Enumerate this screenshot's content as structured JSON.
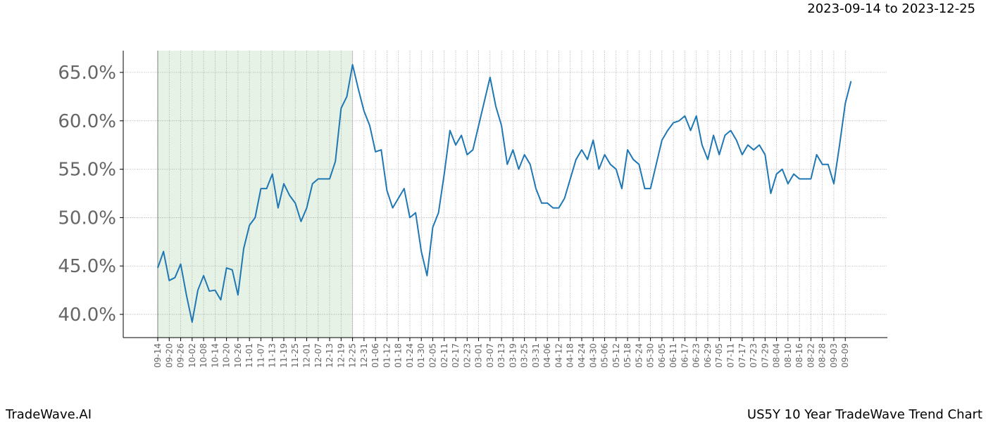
{
  "chart_data": {
    "type": "line",
    "title": "2023-09-14 to 2023-12-25",
    "footer_left": "TradeWave.AI",
    "footer_right": "US5Y 10 Year TradeWave Trend Chart",
    "categories": [
      "09-14",
      null,
      "09-20",
      null,
      "09-26",
      null,
      "10-02",
      null,
      "10-08",
      null,
      "10-14",
      null,
      "10-20",
      null,
      "10-26",
      null,
      "11-01",
      null,
      "11-07",
      null,
      "11-13",
      null,
      "11-19",
      null,
      "11-25",
      null,
      "12-01",
      null,
      "12-07",
      null,
      "12-13",
      null,
      "12-19",
      null,
      "12-25",
      null,
      "12-31",
      null,
      "01-06",
      null,
      "01-12",
      null,
      "01-18",
      null,
      "01-24",
      null,
      "01-30",
      null,
      "02-05",
      null,
      "02-11",
      null,
      "02-17",
      null,
      "02-23",
      null,
      "03-01",
      null,
      "03-07",
      null,
      "03-13",
      null,
      "03-19",
      null,
      "03-25",
      null,
      "03-31",
      null,
      "04-06",
      null,
      "04-12",
      null,
      "04-18",
      null,
      "04-24",
      null,
      "04-30",
      null,
      "05-06",
      null,
      "05-12",
      null,
      "05-18",
      null,
      "05-24",
      null,
      "05-30",
      null,
      "06-05",
      null,
      "06-11",
      null,
      "06-17",
      null,
      "06-23",
      null,
      "06-29",
      null,
      "07-05",
      null,
      "07-11",
      null,
      "07-17",
      null,
      "07-23",
      null,
      "07-29",
      null,
      "08-04",
      null,
      "08-10",
      null,
      "08-16",
      null,
      "08-22",
      null,
      "08-28",
      null,
      "09-03",
      null,
      "09-09",
      null
    ],
    "values": [
      44.8,
      46.5,
      43.5,
      43.8,
      45.2,
      42.0,
      39.2,
      42.5,
      44.0,
      42.4,
      42.5,
      41.5,
      44.8,
      44.6,
      42.0,
      46.8,
      49.2,
      50.0,
      53.0,
      53.0,
      54.5,
      51.0,
      53.5,
      52.3,
      51.5,
      49.6,
      51.0,
      53.5,
      54.0,
      54.0,
      54.0,
      55.8,
      61.3,
      62.5,
      65.8,
      63.3,
      61.0,
      59.5,
      56.8,
      57.0,
      52.8,
      51.0,
      52.0,
      53.0,
      50.0,
      50.5,
      46.5,
      44.0,
      49.0,
      50.5,
      54.5,
      59.0,
      57.5,
      58.5,
      56.5,
      57.0,
      59.5,
      62.0,
      64.5,
      61.5,
      59.5,
      55.5,
      57.0,
      55.0,
      56.5,
      55.5,
      53.0,
      51.5,
      51.5,
      51.0,
      51.0,
      52.0,
      54.0,
      56.0,
      57.0,
      56.0,
      58.0,
      55.0,
      56.5,
      55.5,
      55.0,
      53.0,
      57.0,
      56.0,
      55.5,
      53.0,
      53.0,
      55.5,
      58.0,
      59.0,
      59.8,
      60.0,
      60.5,
      59.0,
      60.5,
      57.5,
      56.0,
      58.5,
      56.5,
      58.5,
      59.0,
      58.0,
      56.5,
      57.5,
      57.0,
      57.5,
      56.5,
      52.5,
      54.5,
      55.0,
      53.5,
      54.5,
      54.0,
      54.0,
      54.0,
      56.5,
      55.5,
      55.5,
      53.5,
      57.5,
      61.8,
      64.1
    ],
    "color": "#1f77b4",
    "shaded_range": [
      "09-14",
      "12-25"
    ],
    "shade_color": "#e5f2e5",
    "ylim": [
      37.6,
      67.25
    ],
    "yticks": [
      {
        "value": 40,
        "label": "40.0%"
      },
      {
        "value": 45,
        "label": "45.0%"
      },
      {
        "value": 50,
        "label": "50.0%"
      },
      {
        "value": 55,
        "label": "55.0%"
      },
      {
        "value": 60,
        "label": "60.0%"
      },
      {
        "value": 65,
        "label": "65.0%"
      }
    ],
    "grid": true
  }
}
